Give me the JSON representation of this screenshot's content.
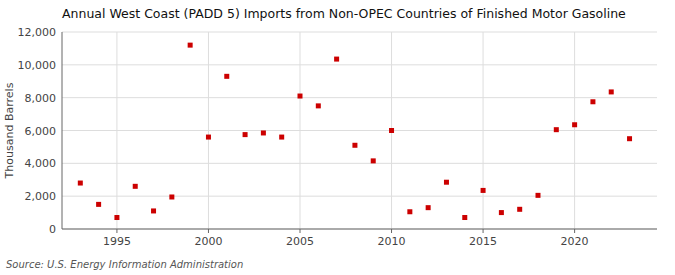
{
  "chart_data": {
    "type": "scatter",
    "title": "Annual West Coast (PADD 5) Imports from Non-OPEC Countries of Finished Motor Gasoline",
    "ylabel": "Thousand Barrels",
    "source": "Source: U.S. Energy Information Administration",
    "x": [
      1993,
      1994,
      1995,
      1996,
      1997,
      1998,
      1999,
      2000,
      2001,
      2002,
      2003,
      2004,
      2005,
      2006,
      2007,
      2008,
      2009,
      2010,
      2011,
      2012,
      2013,
      2014,
      2015,
      2016,
      2017,
      2018,
      2019,
      2020,
      2021,
      2022,
      2023
    ],
    "values": [
      2800,
      1500,
      700,
      2600,
      1100,
      1950,
      11200,
      5600,
      9300,
      5750,
      5850,
      5600,
      8100,
      7500,
      10350,
      5100,
      4150,
      6000,
      1050,
      1300,
      2850,
      700,
      2350,
      1000,
      1200,
      2050,
      6050,
      6350,
      7750,
      8350,
      5500
    ],
    "color": "#cc0000",
    "marker": "square",
    "xlim": [
      1992,
      2024.5
    ],
    "ylim": [
      0,
      12000
    ],
    "xticks": [
      1995,
      2000,
      2005,
      2010,
      2015,
      2020
    ],
    "yticks": [
      0,
      {
        "value": 2000,
        "label": "2,000"
      },
      {
        "value": 4000,
        "label": "4,000"
      },
      {
        "value": 6000,
        "label": "6,000"
      },
      {
        "value": 8000,
        "label": "8,000"
      },
      {
        "value": 10000,
        "label": "10,000"
      },
      {
        "value": 12000,
        "label": "12,000"
      }
    ],
    "grid": true
  }
}
